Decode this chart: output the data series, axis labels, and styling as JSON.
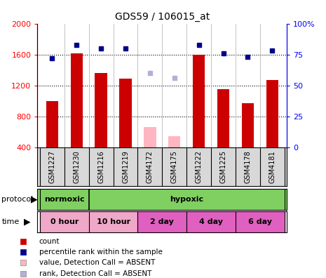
{
  "title": "GDS59 / 106015_at",
  "samples": [
    "GSM1227",
    "GSM1230",
    "GSM1216",
    "GSM1219",
    "GSM4172",
    "GSM4175",
    "GSM1222",
    "GSM1225",
    "GSM4178",
    "GSM4181"
  ],
  "count_values": [
    1000,
    1620,
    1360,
    1290,
    null,
    null,
    1600,
    1150,
    970,
    1270
  ],
  "count_absent": [
    null,
    null,
    null,
    null,
    660,
    540,
    null,
    null,
    null,
    null
  ],
  "rank_values_pct": [
    72,
    83,
    80,
    80,
    null,
    null,
    83,
    76,
    73,
    78
  ],
  "rank_absent_pct": [
    null,
    null,
    null,
    null,
    60,
    56,
    null,
    null,
    null,
    null
  ],
  "ylim_left": [
    400,
    2000
  ],
  "ylim_right": [
    0,
    100
  ],
  "yticks_left": [
    400,
    800,
    1200,
    1600,
    2000
  ],
  "yticks_right": [
    0,
    25,
    50,
    75,
    100
  ],
  "bar_width": 0.5,
  "count_color": "#CC0000",
  "count_absent_color": "#FFB6C1",
  "rank_color": "#00008B",
  "rank_absent_color": "#B0B0D8",
  "normoxic_color": "#7FD060",
  "hypoxic_color": "#7FD060",
  "time_color_light": "#F0A8C8",
  "time_color_dark": "#E060C0",
  "label_bg_color": "#D8D8D8",
  "proto_border_color": "#000000",
  "time_border_color": "#000000"
}
